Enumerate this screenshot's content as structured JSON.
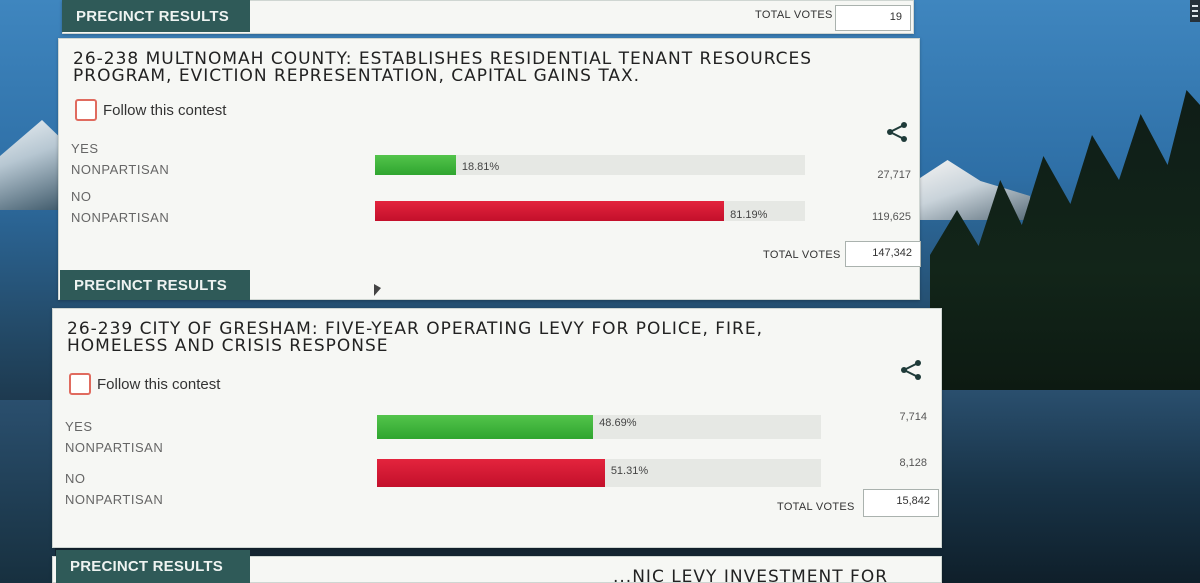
{
  "top": {
    "precinct_results": "PRECINCT RESULTS",
    "total_votes_label": "TOTAL VOTES",
    "total_votes_value": "19"
  },
  "contests": [
    {
      "title_line1": "26-238 MULTNOMAH COUNTY: ESTABLISHES RESIDENTIAL TENANT RESOURCES",
      "title_line2": "PROGRAM, EVICTION REPRESENTATION, CAPITAL GAINS TAX.",
      "follow_label": "Follow this contest",
      "choices": [
        {
          "name": "YES",
          "party": "NONPARTISAN",
          "percent_text": "18.81%",
          "percent": 18.81,
          "votes": "27,717",
          "color": "#3cb43a"
        },
        {
          "name": "NO",
          "party": "NONPARTISAN",
          "percent_text": "81.19%",
          "percent": 81.19,
          "votes": "119,625",
          "color": "#d51a33"
        }
      ],
      "total_votes_label": "TOTAL VOTES",
      "total_votes_value": "147,342",
      "precinct_results": "PRECINCT RESULTS"
    },
    {
      "title_line1": "26-239 CITY OF GRESHAM: FIVE-YEAR OPERATING LEVY FOR POLICE, FIRE,",
      "title_line2": "HOMELESS AND CRISIS RESPONSE",
      "follow_label": "Follow this contest",
      "choices": [
        {
          "name": "YES",
          "party": "NONPARTISAN",
          "percent_text": "48.69%",
          "percent": 48.69,
          "votes": "7,714",
          "color": "#3cb43a"
        },
        {
          "name": "NO",
          "party": "NONPARTISAN",
          "percent_text": "51.31%",
          "percent": 51.31,
          "votes": "8,128",
          "color": "#d51a33"
        }
      ],
      "total_votes_label": "TOTAL VOTES",
      "total_votes_value": "15,842",
      "precinct_results": "PRECINCT RESULTS"
    }
  ],
  "next_contest_partial": "...NIC LEVY INVESTMENT FOR"
}
